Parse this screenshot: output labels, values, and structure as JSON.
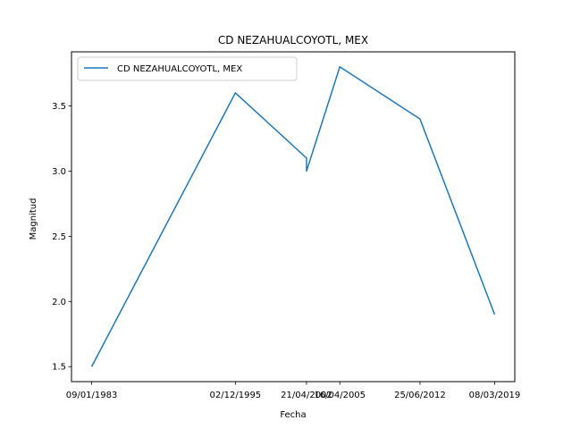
{
  "chart_data": {
    "type": "line",
    "title": "CD NEZAHUALCOYOTL, MEX",
    "xlabel": "Fecha",
    "ylabel": "Magnitud",
    "x": [
      "09/01/1983",
      "02/12/1995",
      "21/04/2002",
      "21/04/2002",
      "16/04/2005",
      "25/06/2012",
      "08/03/2019"
    ],
    "x_ticks": [
      "09/01/1983",
      "02/12/1995",
      "21/04/2002",
      "16/04/2005",
      "25/06/2012",
      "08/03/2019"
    ],
    "series": [
      {
        "name": "CD NEZAHUALCOYOTL, MEX",
        "color": "#1f77b4",
        "values": [
          1.5,
          3.6,
          3.1,
          3.0,
          3.8,
          3.4,
          1.9
        ]
      }
    ],
    "y_ticks": [
      1.5,
      2.0,
      2.5,
      3.0,
      3.5
    ],
    "y_tick_labels": [
      "1.5",
      "2.0",
      "2.5",
      "3.0",
      "3.5"
    ],
    "ylim": [
      1.385,
      3.915
    ],
    "grid": false,
    "legend": "upper left"
  }
}
